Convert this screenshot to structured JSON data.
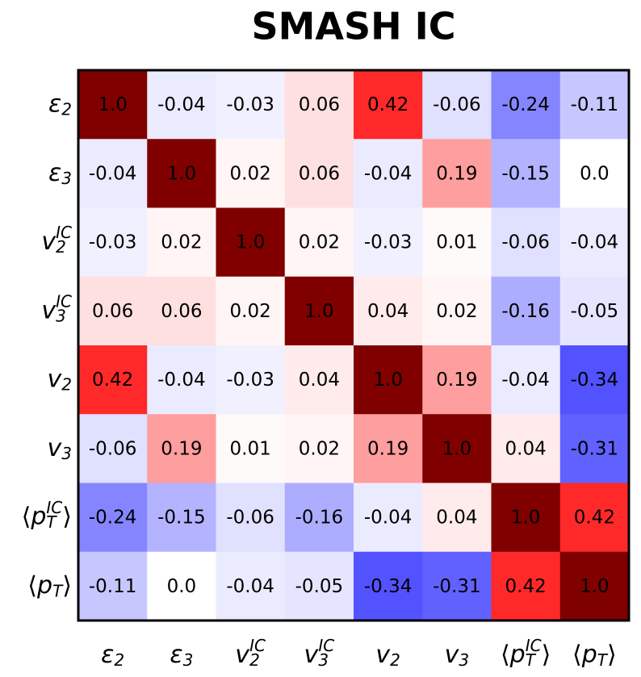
{
  "chart_data": {
    "type": "heatmap",
    "title": "SMASH IC",
    "categories": [
      {
        "base": "ε",
        "sub": "2"
      },
      {
        "base": "ε",
        "sub": "3"
      },
      {
        "base": "v",
        "sub": "2",
        "sup": "IC"
      },
      {
        "base": "v",
        "sub": "3",
        "sup": "IC"
      },
      {
        "base": "v",
        "sub": "2"
      },
      {
        "base": "v",
        "sub": "3"
      },
      {
        "open": "⟨",
        "base": "p",
        "sub": "T",
        "sup": "IC",
        "close": "⟩"
      },
      {
        "open": "⟨",
        "base": "p",
        "sub": "T",
        "close": "⟩"
      }
    ],
    "values": [
      [
        1.0,
        -0.04,
        -0.03,
        0.06,
        0.42,
        -0.06,
        -0.24,
        -0.11
      ],
      [
        -0.04,
        1.0,
        0.02,
        0.06,
        -0.04,
        0.19,
        -0.15,
        0.0
      ],
      [
        -0.03,
        0.02,
        1.0,
        0.02,
        -0.03,
        0.01,
        -0.06,
        -0.04
      ],
      [
        0.06,
        0.06,
        0.02,
        1.0,
        0.04,
        0.02,
        -0.16,
        -0.05
      ],
      [
        0.42,
        -0.04,
        -0.03,
        0.04,
        1.0,
        0.19,
        -0.04,
        -0.34
      ],
      [
        -0.06,
        0.19,
        0.01,
        0.02,
        0.19,
        1.0,
        0.04,
        -0.31
      ],
      [
        -0.24,
        -0.15,
        -0.06,
        -0.16,
        -0.04,
        0.04,
        1.0,
        0.42
      ],
      [
        -0.11,
        0.0,
        -0.04,
        -0.05,
        -0.34,
        -0.31,
        0.42,
        1.0
      ]
    ],
    "value_labels": [
      [
        "1.0",
        "-0.04",
        "-0.03",
        "0.06",
        "0.42",
        "-0.06",
        "-0.24",
        "-0.11"
      ],
      [
        "-0.04",
        "1.0",
        "0.02",
        "0.06",
        "-0.04",
        "0.19",
        "-0.15",
        "0.0"
      ],
      [
        "-0.03",
        "0.02",
        "1.0",
        "0.02",
        "-0.03",
        "0.01",
        "-0.06",
        "-0.04"
      ],
      [
        "0.06",
        "0.06",
        "0.02",
        "1.0",
        "0.04",
        "0.02",
        "-0.16",
        "-0.05"
      ],
      [
        "0.42",
        "-0.04",
        "-0.03",
        "0.04",
        "1.0",
        "0.19",
        "-0.04",
        "-0.34"
      ],
      [
        "-0.06",
        "0.19",
        "0.01",
        "0.02",
        "0.19",
        "1.0",
        "0.04",
        "-0.31"
      ],
      [
        "-0.24",
        "-0.15",
        "-0.06",
        "-0.16",
        "-0.04",
        "0.04",
        "1.0",
        "0.42"
      ],
      [
        "-0.11",
        "0.0",
        "-0.04",
        "-0.05",
        "-0.34",
        "-0.31",
        "0.42",
        "1.0"
      ]
    ],
    "colormap": "seismic",
    "clim": [
      -1,
      1
    ]
  }
}
